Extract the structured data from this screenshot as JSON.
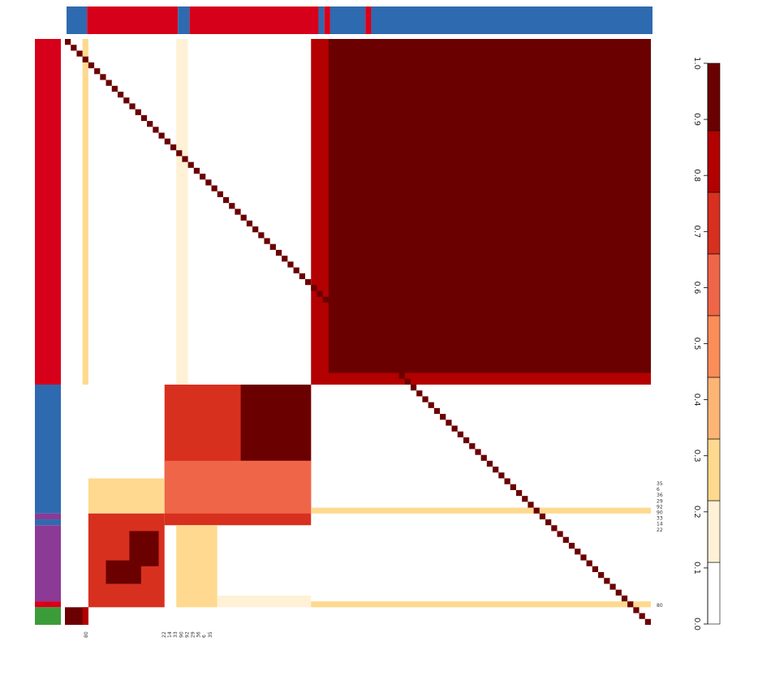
{
  "chart_data": {
    "type": "heatmap",
    "title": "",
    "value_range": [
      0,
      1
    ],
    "colorbar": {
      "ticks": [
        "0.0",
        "0.1",
        "0.2",
        "0.3",
        "0.4",
        "0.5",
        "0.6",
        "0.7",
        "0.8",
        "0.9",
        "1.0"
      ],
      "bins": [
        {
          "from": 0.0,
          "to": 0.11,
          "color": "#ffffff"
        },
        {
          "from": 0.11,
          "to": 0.22,
          "color": "#fff1d6"
        },
        {
          "from": 0.22,
          "to": 0.33,
          "color": "#fed98f"
        },
        {
          "from": 0.33,
          "to": 0.44,
          "color": "#fdb576"
        },
        {
          "from": 0.44,
          "to": 0.55,
          "color": "#fc8d59"
        },
        {
          "from": 0.55,
          "to": 0.66,
          "color": "#ef6548"
        },
        {
          "from": 0.66,
          "to": 0.77,
          "color": "#d7301f"
        },
        {
          "from": 0.77,
          "to": 0.88,
          "color": "#b30000"
        },
        {
          "from": 0.88,
          "to": 1.0,
          "color": "#6b0000"
        }
      ],
      "placement": "right"
    },
    "n_samples": 100,
    "row_annotation_colors": {
      "red": "#d7001a",
      "blue": "#2e6ab0",
      "purple": "#8b3a96",
      "green": "#3d9c3a"
    },
    "row_annotation_blocks": [
      {
        "group": "red",
        "from": 0,
        "to": 59
      },
      {
        "group": "blue",
        "from": 59,
        "to": 81
      },
      {
        "group": "purple",
        "from": 81,
        "to": 82
      },
      {
        "group": "blue",
        "from": 82,
        "to": 83
      },
      {
        "group": "purple",
        "from": 83,
        "to": 96
      },
      {
        "group": "red",
        "from": 96,
        "to": 97
      },
      {
        "group": "green",
        "from": 97,
        "to": 100
      }
    ],
    "column_annotation_blocks": [
      {
        "group": "blue",
        "from": 0,
        "to": 3.5
      },
      {
        "group": "red",
        "from": 3.5,
        "to": 19
      },
      {
        "group": "blue",
        "from": 19,
        "to": 21
      },
      {
        "group": "red",
        "from": 21,
        "to": 43
      },
      {
        "group": "blue",
        "from": 43,
        "to": 44
      },
      {
        "group": "red",
        "from": 44,
        "to": 45
      },
      {
        "group": "blue",
        "from": 45,
        "to": 51
      },
      {
        "group": "red",
        "from": 51,
        "to": 52
      },
      {
        "group": "blue",
        "from": 52,
        "to": 100
      }
    ],
    "blocks": [
      {
        "rows": [
          0,
          59
        ],
        "cols": [
          0,
          100
        ],
        "value": 0.05
      },
      {
        "rows": [
          0,
          59
        ],
        "cols": [
          3,
          4
        ],
        "value": 0.25
      },
      {
        "rows": [
          0,
          59
        ],
        "cols": [
          19,
          21
        ],
        "value": 0.2
      },
      {
        "rows": [
          0,
          59
        ],
        "cols": [
          42,
          100
        ],
        "value": 0.82
      },
      {
        "rows": [
          0,
          57
        ],
        "cols": [
          45,
          100
        ],
        "value": 0.95
      },
      {
        "rows": [
          59,
          83
        ],
        "cols": [
          17,
          42
        ],
        "value": 0.72
      },
      {
        "rows": [
          59,
          72
        ],
        "cols": [
          30,
          42
        ],
        "value": 0.95
      },
      {
        "rows": [
          72,
          81
        ],
        "cols": [
          17,
          42
        ],
        "value": 0.65
      },
      {
        "rows": [
          75,
          81
        ],
        "cols": [
          4,
          17
        ],
        "value": 0.3
      },
      {
        "rows": [
          81,
          97
        ],
        "cols": [
          4,
          17
        ],
        "value": 0.72
      },
      {
        "rows": [
          84,
          90
        ],
        "cols": [
          11,
          16
        ],
        "value": 0.95
      },
      {
        "rows": [
          89,
          93
        ],
        "cols": [
          7,
          13
        ],
        "value": 0.92
      },
      {
        "rows": [
          83,
          97
        ],
        "cols": [
          19,
          26
        ],
        "value": 0.3
      },
      {
        "rows": [
          95,
          97
        ],
        "cols": [
          26,
          42
        ],
        "value": 0.2
      },
      {
        "rows": [
          80,
          81
        ],
        "cols": [
          42,
          100
        ],
        "value": 0.22
      },
      {
        "rows": [
          96,
          97
        ],
        "cols": [
          42,
          100
        ],
        "value": 0.3
      },
      {
        "rows": [
          97,
          100
        ],
        "cols": [
          0,
          4
        ],
        "value": 0.9
      },
      {
        "rows": [
          97,
          100
        ],
        "cols": [
          3,
          4
        ],
        "value": 0.8
      }
    ],
    "row_labels_mid": [
      "35",
      "6",
      "36",
      "29",
      "92",
      "90",
      "33",
      "14",
      "22"
    ],
    "row_label_bottom": "80",
    "col_label_left": "80",
    "col_labels_mid": [
      "22",
      "14",
      "33",
      "90",
      "92",
      "29",
      "36",
      "6",
      "35"
    ]
  }
}
